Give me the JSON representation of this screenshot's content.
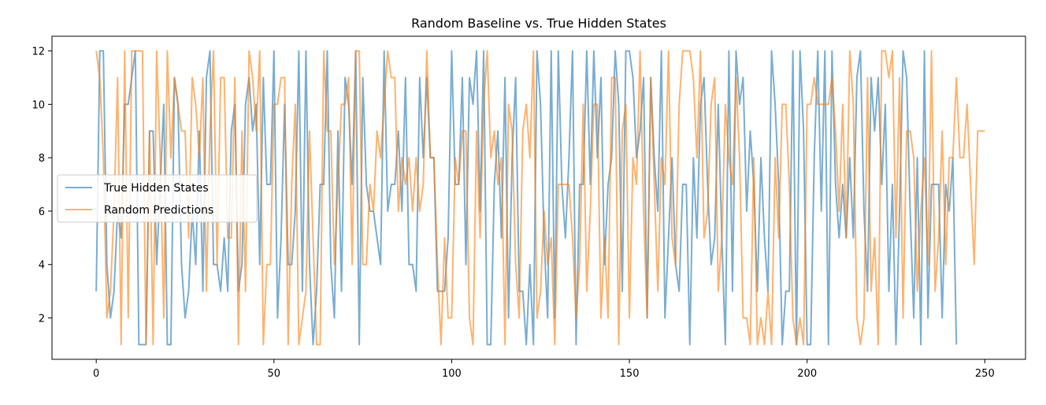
{
  "chart_data": {
    "type": "line",
    "title": "Random Baseline vs. True Hidden States",
    "xlabel": "",
    "ylabel": "",
    "xlim": [
      -12.45,
      261.45
    ],
    "ylim": [
      0.45,
      12.55
    ],
    "xticks": [
      0,
      50,
      100,
      150,
      200,
      250
    ],
    "yticks": [
      2,
      4,
      6,
      8,
      10,
      12
    ],
    "grid": false,
    "legend_position": "center-left",
    "series": [
      {
        "name": "True Hidden States",
        "color": "#1f77b4",
        "values": [
          3,
          12,
          12,
          4,
          2,
          3,
          6,
          5,
          10,
          10,
          11,
          12,
          1,
          1,
          1,
          9,
          9,
          4,
          7,
          10,
          1,
          1,
          11,
          10,
          4,
          2,
          3,
          6,
          4,
          9,
          3,
          11,
          12,
          4,
          4,
          3,
          5,
          3,
          9,
          10,
          3,
          4,
          10,
          11,
          9,
          10,
          4,
          11,
          7,
          7,
          12,
          2,
          5,
          10,
          4,
          4,
          6,
          12,
          3,
          12,
          4,
          1,
          3,
          7,
          7,
          12,
          4,
          2,
          9,
          3,
          11,
          10,
          7,
          12,
          1,
          11,
          7,
          6,
          6,
          5,
          4,
          12,
          6,
          7,
          7,
          9,
          6,
          11,
          4,
          4,
          3,
          11,
          8,
          11,
          8,
          8,
          3,
          3,
          3,
          5,
          12,
          7,
          7,
          11,
          4,
          11,
          10,
          12,
          6,
          12,
          1,
          1,
          7,
          9,
          5,
          11,
          2,
          8,
          11,
          3,
          3,
          1,
          4,
          1,
          12,
          10,
          5,
          2,
          12,
          2,
          12,
          7,
          5,
          8,
          12,
          1,
          7,
          7,
          12,
          7,
          12,
          8,
          11,
          4,
          7,
          8,
          12,
          10,
          3,
          12,
          12,
          11,
          8,
          9,
          11,
          2,
          11,
          8,
          6,
          12,
          2,
          5,
          8,
          4,
          3,
          7,
          7,
          1,
          8,
          5,
          10,
          11,
          7,
          4,
          5,
          10,
          5,
          1,
          12,
          3,
          12,
          10,
          11,
          6,
          9,
          7,
          3,
          8,
          5,
          3,
          12,
          10,
          7,
          1,
          3,
          3,
          12,
          1,
          12,
          9,
          1,
          1,
          8,
          12,
          6,
          12,
          1,
          12,
          7,
          5,
          7,
          5,
          8,
          5,
          11,
          12,
          6,
          3,
          11,
          9,
          11,
          7,
          10,
          3,
          7,
          1,
          6,
          12,
          11,
          6,
          2,
          8,
          1,
          12,
          2,
          7,
          7,
          7,
          2,
          7,
          6,
          8,
          1
        ]
      },
      {
        "name": "Random Predictions",
        "color": "#ff7f0e",
        "values": [
          12,
          11,
          8,
          2,
          3,
          6,
          11,
          1,
          12,
          2,
          12,
          12,
          12,
          12,
          1,
          9,
          1,
          12,
          8,
          2,
          12,
          8,
          11,
          10,
          9,
          9,
          5,
          11,
          10,
          8,
          11,
          3,
          9,
          12,
          4,
          11,
          11,
          5,
          5,
          11,
          1,
          9,
          3,
          12,
          11,
          9,
          12,
          1,
          4,
          4,
          10,
          10,
          11,
          11,
          1,
          7,
          10,
          1,
          2,
          3,
          9,
          5,
          1,
          1,
          12,
          9,
          9,
          4,
          7,
          10,
          10,
          11,
          4,
          12,
          12,
          4,
          4,
          7,
          6,
          9,
          8,
          10,
          12,
          11,
          11,
          6,
          8,
          7,
          8,
          6,
          8,
          6,
          7,
          12,
          8,
          8,
          4,
          1,
          5,
          2,
          2,
          8,
          7,
          9,
          9,
          2,
          1,
          9,
          5,
          10,
          12,
          8,
          9,
          7,
          8,
          1,
          10,
          9,
          4,
          2,
          9,
          10,
          8,
          12,
          2,
          3,
          6,
          4,
          5,
          1,
          7,
          7,
          7,
          7,
          5,
          2,
          4,
          10,
          3,
          6,
          10,
          10,
          2,
          5,
          2,
          11,
          11,
          1,
          9,
          10,
          2,
          8,
          7,
          12,
          6,
          2,
          11,
          7,
          3,
          8,
          7,
          12,
          5,
          4,
          10,
          12,
          12,
          12,
          11,
          8,
          12,
          5,
          6,
          10,
          11,
          3,
          5,
          10,
          8,
          7,
          11,
          8,
          2,
          2,
          1,
          8,
          1,
          2,
          1,
          3,
          1,
          8,
          5,
          10,
          10,
          7,
          2,
          1,
          2,
          1,
          10,
          10,
          11,
          10,
          10,
          10,
          10,
          11,
          9,
          6,
          10,
          5,
          12,
          10,
          2,
          1,
          2,
          11,
          3,
          5,
          1,
          12,
          12,
          11,
          12,
          5,
          11,
          2,
          9,
          9,
          8,
          3,
          6,
          8,
          4,
          12,
          3,
          5,
          9,
          4,
          8,
          8,
          11,
          8,
          8,
          10,
          7,
          4,
          9,
          9,
          9
        ]
      }
    ]
  }
}
